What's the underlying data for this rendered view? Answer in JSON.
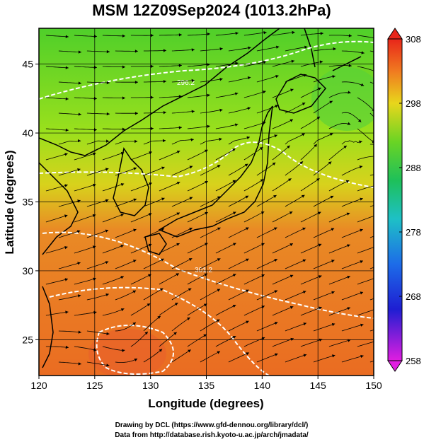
{
  "title": "MSM 12Z09Sep2024 (1013.2hPa)",
  "xlabel": "Longitude (degrees)",
  "ylabel": "Latitude  (degrees)",
  "credits": [
    "Drawing by DCL (https://www.gfd-dennou.org/library/dcl/)",
    "Data from http://database.rish.kyoto-u.ac.jp/arch/jmadata/"
  ],
  "chart_data": {
    "type": "heatmap",
    "title": "MSM 12Z09Sep2024 (1013.2hPa)",
    "xlabel": "Longitude (degrees)",
    "ylabel": "Latitude  (degrees)",
    "xlim": [
      120,
      150
    ],
    "ylim": [
      22.4,
      47.6
    ],
    "xticks": [
      120,
      125,
      130,
      135,
      140,
      145,
      150
    ],
    "yticks": [
      25,
      30,
      35,
      40,
      45
    ],
    "grid": true,
    "colorbar": {
      "min": 258,
      "max": 308,
      "ticks": [
        258,
        268,
        278,
        288,
        298,
        308
      ],
      "position": "right"
    },
    "contour_labels": [
      "296.2",
      "301.2"
    ],
    "overlays": [
      "coastlines",
      "streamlines"
    ]
  }
}
